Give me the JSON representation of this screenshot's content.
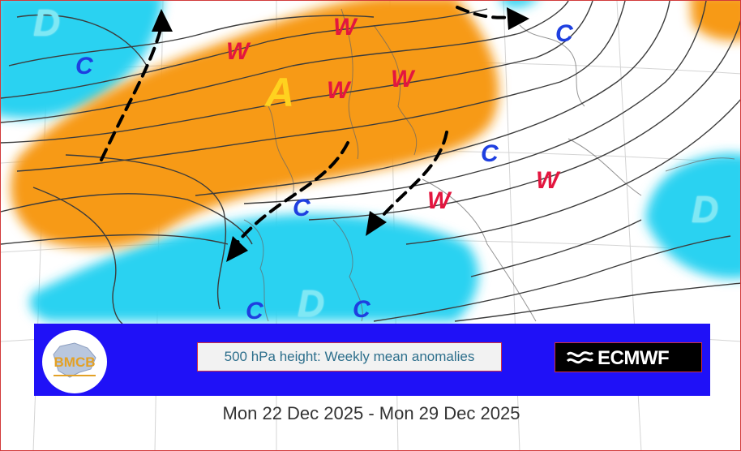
{
  "map": {
    "title": "500 hPa height: Weekly mean anomalies",
    "date_range": "Mon 22 Dec 2025 - Mon 29 Dec 2025",
    "producer": "ECMWF",
    "logo_text": "BMCB",
    "anomaly_colors": {
      "positive": "#f79a17",
      "negative": "#2cd2f1"
    },
    "labels": {
      "d_nw": "D",
      "c_nw": "C",
      "w_n_atlantic": "W",
      "w_norway_north": "W",
      "a_center": "A",
      "w_norway": "W",
      "w_finland": "W",
      "c_ne_top": "C",
      "c_central_europe": "C",
      "w_east_europe": "W",
      "w_balkans": "W",
      "d_east": "D",
      "c_west_med": "C",
      "d_med": "D",
      "c_med_left": "C",
      "c_med_right": "C"
    }
  }
}
